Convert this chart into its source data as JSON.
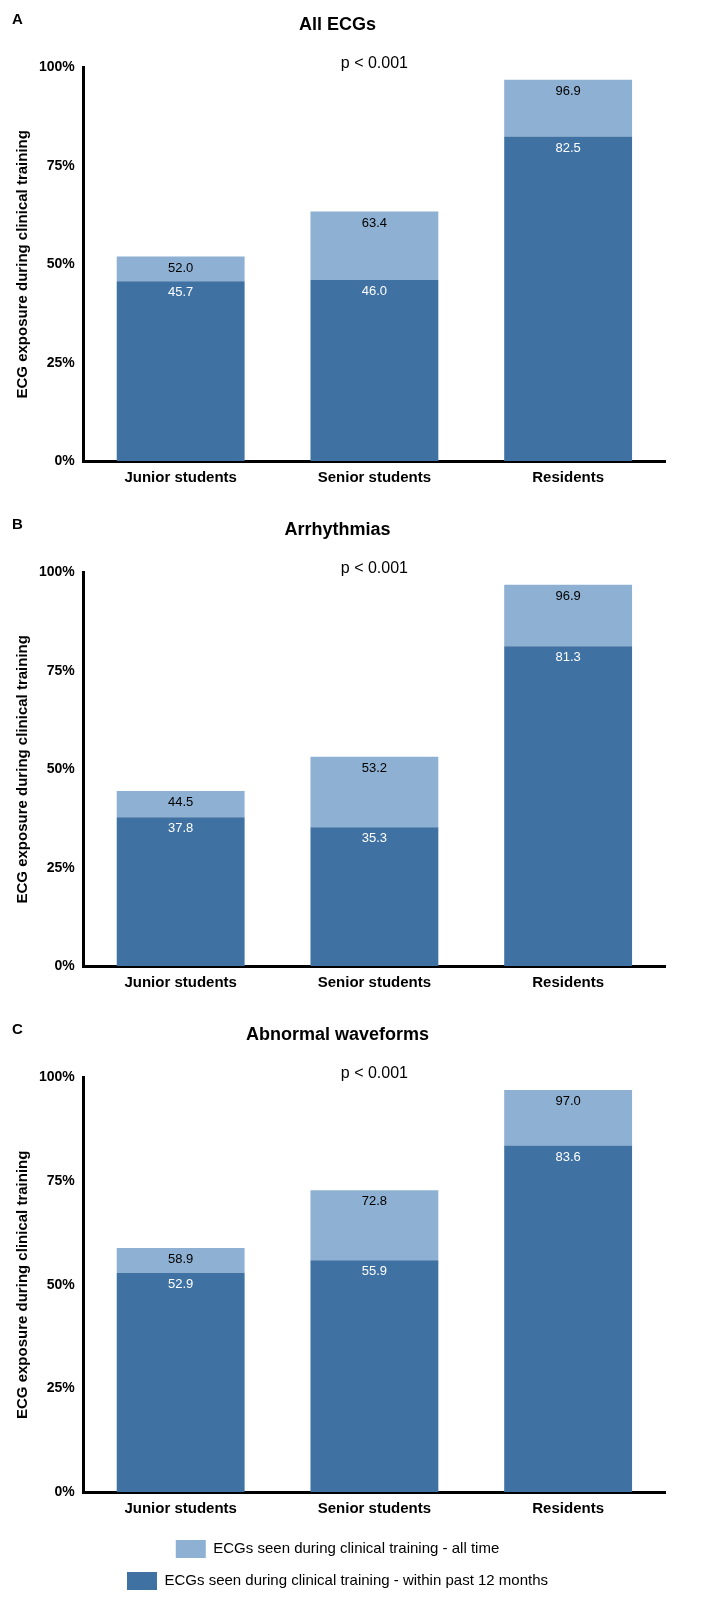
{
  "chart_data": [
    {
      "type": "bar",
      "title": "All ECGs",
      "ylabel": "ECG exposure during clinical training",
      "annotations": [
        "A",
        "p < 0.001"
      ],
      "categories": [
        "Junior students",
        "Senior students",
        "Residents"
      ],
      "stacked": true,
      "ylim": [
        0,
        100
      ],
      "yticks": [
        {
          "value": 0,
          "label": "0%"
        },
        {
          "value": 25,
          "label": "25%"
        },
        {
          "value": 50,
          "label": "50%"
        },
        {
          "value": 75,
          "label": "75%"
        },
        {
          "value": 100,
          "label": "100%"
        }
      ],
      "grid": false,
      "legend": false,
      "totals": [
        "52.0",
        "63.4",
        "96.9"
      ],
      "series": [
        {
          "color": "#3f72a3",
          "values": [
            45.7,
            46.0,
            82.5
          ],
          "value_labels": [
            "45.7",
            "46.0",
            "82.5"
          ]
        },
        {
          "color": "#8eb0d3",
          "values": [
            6.3,
            17.4,
            14.4
          ]
        }
      ]
    },
    {
      "type": "bar",
      "title": "Arrhythmias",
      "ylabel": "ECG exposure during clinical training",
      "annotations": [
        "B",
        "p < 0.001"
      ],
      "categories": [
        "Junior students",
        "Senior students",
        "Residents"
      ],
      "stacked": true,
      "ylim": [
        0,
        100
      ],
      "yticks": [
        {
          "value": 0,
          "label": "0%"
        },
        {
          "value": 25,
          "label": "25%"
        },
        {
          "value": 50,
          "label": "50%"
        },
        {
          "value": 75,
          "label": "75%"
        },
        {
          "value": 100,
          "label": "100%"
        }
      ],
      "grid": false,
      "legend": false,
      "totals": [
        "44.5",
        "53.2",
        "96.9"
      ],
      "series": [
        {
          "color": "#3f72a3",
          "values": [
            37.8,
            35.3,
            81.3
          ],
          "value_labels": [
            "37.8",
            "35.3",
            "81.3"
          ]
        },
        {
          "color": "#8eb0d3",
          "values": [
            6.7,
            17.9,
            15.6
          ]
        }
      ]
    },
    {
      "type": "bar",
      "title": "Abnormal waveforms",
      "ylabel": "ECG exposure during clinical training",
      "annotations": [
        "C",
        "p < 0.001"
      ],
      "categories": [
        "Junior students",
        "Senior students",
        "Residents"
      ],
      "stacked": true,
      "ylim": [
        0,
        100
      ],
      "yticks": [
        {
          "value": 0,
          "label": "0%"
        },
        {
          "value": 25,
          "label": "25%"
        },
        {
          "value": 50,
          "label": "50%"
        },
        {
          "value": 75,
          "label": "75%"
        },
        {
          "value": 100,
          "label": "100%"
        }
      ],
      "grid": false,
      "legend": "bottom",
      "totals": [
        "58.9",
        "72.8",
        "97.0"
      ],
      "series": [
        {
          "name": "ECGs seen during clinical training - within past 12 months",
          "color": "#3f72a3",
          "values": [
            52.9,
            55.9,
            83.6
          ],
          "value_labels": [
            "52.9",
            "55.9",
            "83.6"
          ]
        },
        {
          "name": "ECGs seen during clinical training - all time",
          "color": "#8eb0d3",
          "values": [
            6.0,
            16.9,
            13.4
          ]
        }
      ]
    }
  ]
}
